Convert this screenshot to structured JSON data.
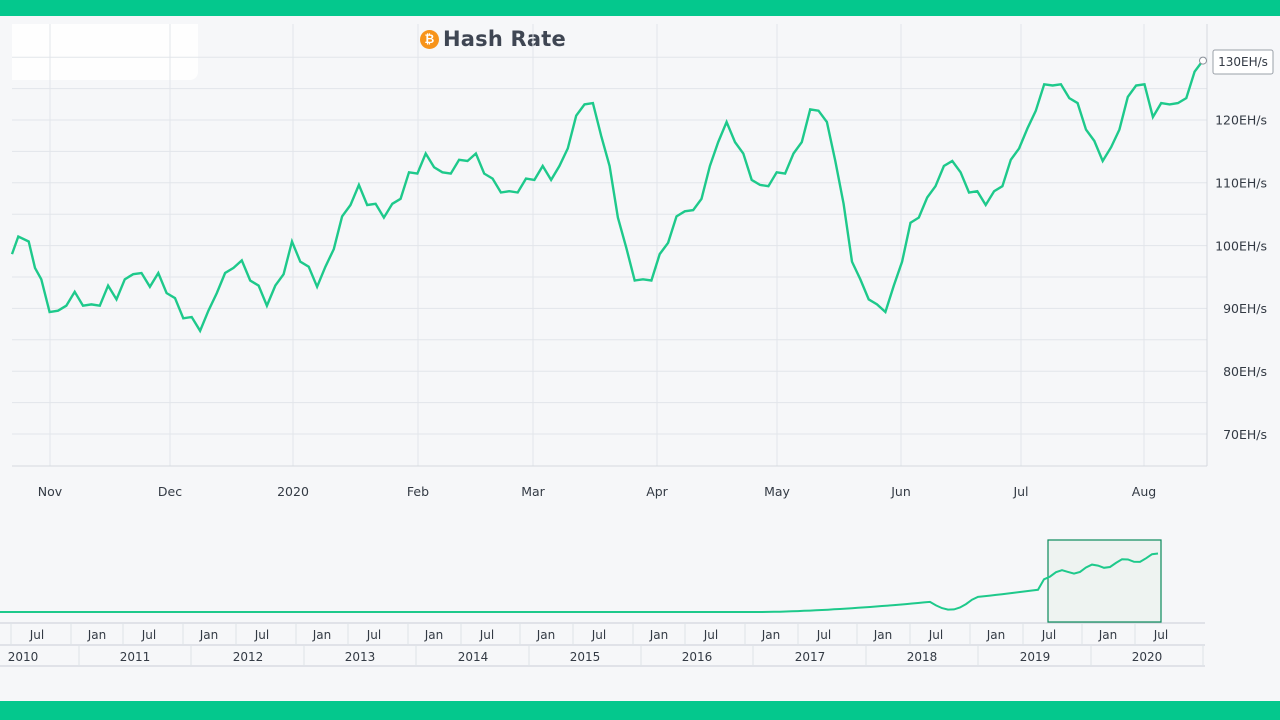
{
  "title": "Hash Rate",
  "icon": "bitcoin-icon",
  "colors": {
    "accent": "#04c88d",
    "line": "#1ec98b",
    "btc": "#f7931a"
  },
  "current_label": "130EH/s",
  "chart_data": {
    "type": "line",
    "title": "Hash Rate",
    "ylabel": "",
    "ylim": [
      65,
      135
    ],
    "y_ticks": [
      "70EH/s",
      "80EH/s",
      "90EH/s",
      "100EH/s",
      "110EH/s",
      "120EH/s",
      "130EH/s"
    ],
    "x_ticks": [
      "Nov",
      "Dec",
      "2020",
      "Feb",
      "Mar",
      "Apr",
      "May",
      "Jun",
      "Jul",
      "Aug"
    ],
    "grid": true,
    "series": [
      {
        "values": [
          [
            0,
            98
          ],
          [
            3,
            102
          ],
          [
            8,
            100
          ],
          [
            11,
            97
          ],
          [
            14,
            94
          ],
          [
            18,
            90
          ],
          [
            22,
            89
          ],
          [
            26,
            91
          ],
          [
            30,
            92
          ],
          [
            34,
            91
          ],
          [
            38,
            90
          ],
          [
            42,
            91
          ],
          [
            46,
            93
          ],
          [
            50,
            92
          ],
          [
            54,
            94
          ],
          [
            58,
            96
          ],
          [
            62,
            95
          ],
          [
            66,
            94
          ],
          [
            70,
            95
          ],
          [
            74,
            93
          ],
          [
            78,
            91
          ],
          [
            82,
            89
          ],
          [
            86,
            88
          ],
          [
            90,
            87
          ],
          [
            94,
            89
          ],
          [
            98,
            93
          ],
          [
            102,
            95
          ],
          [
            106,
            97
          ],
          [
            110,
            97
          ],
          [
            114,
            95
          ],
          [
            118,
            93
          ],
          [
            122,
            91
          ],
          [
            126,
            93
          ],
          [
            130,
            96
          ],
          [
            134,
            100
          ],
          [
            138,
            98
          ],
          [
            142,
            96
          ],
          [
            146,
            94
          ],
          [
            150,
            96
          ],
          [
            154,
            100
          ],
          [
            158,
            104
          ],
          [
            162,
            107
          ],
          [
            166,
            109
          ],
          [
            170,
            107
          ],
          [
            174,
            106
          ],
          [
            178,
            105
          ],
          [
            182,
            106
          ],
          [
            186,
            108
          ],
          [
            190,
            111
          ],
          [
            194,
            112
          ],
          [
            198,
            114
          ],
          [
            202,
            113
          ],
          [
            206,
            111
          ],
          [
            210,
            112
          ],
          [
            214,
            113
          ],
          [
            218,
            114
          ],
          [
            222,
            114
          ],
          [
            226,
            112
          ],
          [
            230,
            110
          ],
          [
            234,
            109
          ],
          [
            238,
            108
          ],
          [
            242,
            109
          ],
          [
            246,
            110
          ],
          [
            250,
            111
          ],
          [
            254,
            112
          ],
          [
            258,
            111
          ],
          [
            262,
            112
          ],
          [
            266,
            116
          ],
          [
            270,
            120
          ],
          [
            274,
            123
          ],
          [
            278,
            122
          ],
          [
            282,
            118
          ],
          [
            286,
            112
          ],
          [
            290,
            105
          ],
          [
            294,
            99
          ],
          [
            298,
            95
          ],
          [
            302,
            94
          ],
          [
            306,
            95
          ],
          [
            310,
            98
          ],
          [
            314,
            101
          ],
          [
            318,
            104
          ],
          [
            322,
            106
          ],
          [
            326,
            105
          ],
          [
            330,
            108
          ],
          [
            334,
            112
          ],
          [
            338,
            117
          ],
          [
            342,
            119
          ],
          [
            346,
            117
          ],
          [
            350,
            114
          ],
          [
            354,
            111
          ],
          [
            358,
            109
          ],
          [
            362,
            110
          ],
          [
            366,
            111
          ],
          [
            370,
            112
          ],
          [
            374,
            114
          ],
          [
            378,
            117
          ],
          [
            382,
            121
          ],
          [
            386,
            122
          ],
          [
            390,
            119
          ],
          [
            394,
            114
          ],
          [
            398,
            106
          ],
          [
            402,
            98
          ],
          [
            406,
            94
          ],
          [
            410,
            92
          ],
          [
            414,
            90
          ],
          [
            418,
            90
          ],
          [
            422,
            93
          ],
          [
            426,
            98
          ],
          [
            430,
            103
          ],
          [
            434,
            105
          ],
          [
            438,
            107
          ],
          [
            442,
            110
          ],
          [
            446,
            112
          ],
          [
            450,
            114
          ],
          [
            454,
            111
          ],
          [
            458,
            109
          ],
          [
            462,
            108
          ],
          [
            466,
            107
          ],
          [
            470,
            108
          ],
          [
            474,
            110
          ],
          [
            478,
            113
          ],
          [
            482,
            116
          ],
          [
            486,
            118
          ],
          [
            490,
            122
          ],
          [
            494,
            125
          ],
          [
            498,
            126
          ],
          [
            502,
            125
          ],
          [
            506,
            124
          ],
          [
            510,
            122
          ],
          [
            514,
            119
          ],
          [
            518,
            116
          ],
          [
            522,
            114
          ],
          [
            526,
            115
          ],
          [
            530,
            119
          ],
          [
            534,
            123
          ],
          [
            538,
            126
          ],
          [
            542,
            125
          ],
          [
            546,
            121
          ],
          [
            550,
            122
          ],
          [
            554,
            123
          ],
          [
            558,
            122
          ],
          [
            562,
            124
          ],
          [
            566,
            127
          ],
          [
            570,
            130
          ]
        ]
      }
    ]
  },
  "navigator": {
    "year_labels": [
      "2010",
      "2011",
      "2012",
      "2013",
      "2014",
      "2015",
      "2016",
      "2017",
      "2018",
      "2019",
      "2020"
    ],
    "minor_labels": [
      "Jul",
      "Jan",
      "Jul",
      "Jan",
      "Jul",
      "Jan",
      "Jul",
      "Jan",
      "Jul",
      "Jan",
      "Jul",
      "Jan",
      "Jul",
      "Jan",
      "Jul",
      "Jan",
      "Jul",
      "Jan",
      "Jul",
      "Jan",
      "Jul"
    ]
  }
}
